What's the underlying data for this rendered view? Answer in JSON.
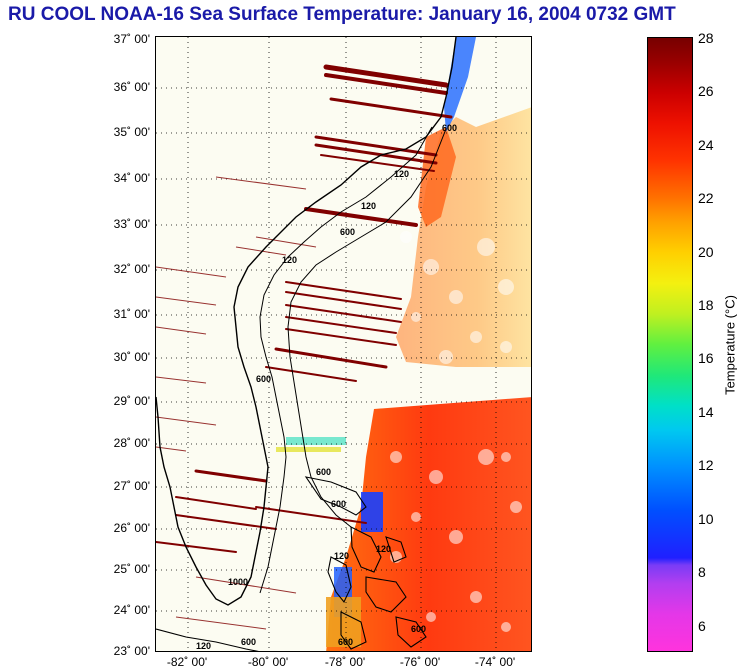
{
  "title": "RU COOL  NOAA-16  Sea Surface Temperature:  January 16, 2004 0732 GMT",
  "map": {
    "lat_labels": [
      "37˚ 00'",
      "36˚ 00'",
      "35˚ 00'",
      "34˚ 00'",
      "33˚ 00'",
      "32˚ 00'",
      "31˚ 00'",
      "30˚ 00'",
      "29˚ 00'",
      "28˚ 00'",
      "27˚ 00'",
      "26˚ 00'",
      "25˚ 00'",
      "24˚ 00'",
      "23˚ 00'"
    ],
    "lon_labels": [
      "-82˚ 00'",
      "-80˚ 00'",
      "-78˚ 00'",
      "-76˚ 00'",
      "-74˚ 00'"
    ],
    "isobath_labels": [
      "120",
      "120",
      "600",
      "120",
      "600",
      "600",
      "600",
      "120",
      "1000",
      "120",
      "600",
      "600",
      "120",
      "600",
      "600"
    ]
  },
  "colorbar": {
    "ticks": [
      "28",
      "26",
      "24",
      "22",
      "20",
      "18",
      "16",
      "14",
      "12",
      "10",
      "8",
      "6"
    ],
    "label": "Temperature (°C)"
  },
  "colors": {
    "title": "#1a1aa8",
    "land": "#fcfcf2",
    "cloud_stripe": "#800000",
    "warm_water": "#ff4a10"
  }
}
